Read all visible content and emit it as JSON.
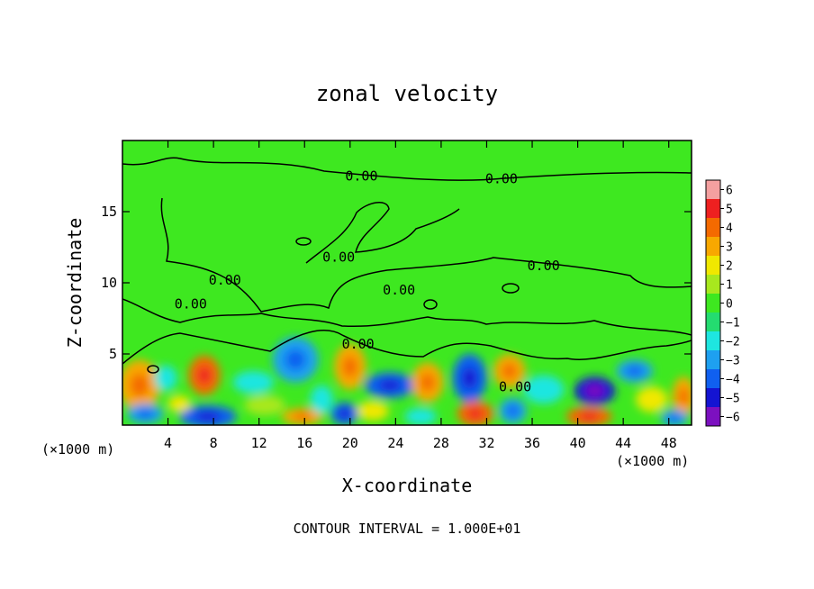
{
  "chart_data": {
    "type": "heatmap",
    "title": "zonal velocity",
    "xlabel": "X-coordinate",
    "ylabel": "Z-coordinate",
    "x_unit_left": "(×1000 m)",
    "x_unit_right": "(×1000 m)",
    "xlim": [
      0,
      50
    ],
    "ylim": [
      0,
      20
    ],
    "x_ticks": [
      4,
      8,
      12,
      16,
      20,
      24,
      28,
      32,
      36,
      40,
      44,
      48
    ],
    "y_ticks": [
      5,
      10,
      15
    ],
    "footer": "CONTOUR INTERVAL = 1.000E+01",
    "colorbar": {
      "min": -6,
      "max": 6,
      "tick_labels": [
        "6",
        "5",
        "4",
        "3",
        "2",
        "1",
        "0",
        "−1",
        "−2",
        "−3",
        "−4",
        "−5",
        "−6"
      ],
      "levels": [
        {
          "value": 6,
          "color": "#f4a0a0"
        },
        {
          "value": 5,
          "color": "#ee2020"
        },
        {
          "value": 4,
          "color": "#f46a00"
        },
        {
          "value": 3,
          "color": "#f8a800"
        },
        {
          "value": 2,
          "color": "#f0e800"
        },
        {
          "value": 1,
          "color": "#a8e81e"
        },
        {
          "value": 0,
          "color": "#3ee820"
        },
        {
          "value": -1,
          "color": "#24dc70"
        },
        {
          "value": -2,
          "color": "#1ee6e0"
        },
        {
          "value": -3,
          "color": "#1ea0f0"
        },
        {
          "value": -4,
          "color": "#1060f0"
        },
        {
          "value": -5,
          "color": "#1414d2"
        },
        {
          "value": -6,
          "color": "#7c10c0"
        }
      ]
    },
    "contour_labels": [
      {
        "text": "0.00",
        "x": 21.0,
        "z": 17.5
      },
      {
        "text": "0.00",
        "x": 33.3,
        "z": 17.3
      },
      {
        "text": "0.00",
        "x": 19.0,
        "z": 11.8
      },
      {
        "text": "0.00",
        "x": 37.0,
        "z": 11.2
      },
      {
        "text": "0.00",
        "x": 9.0,
        "z": 10.2
      },
      {
        "text": "0.00",
        "x": 6.0,
        "z": 8.5
      },
      {
        "text": "0.00",
        "x": 24.3,
        "z": 9.5
      },
      {
        "text": "0.00",
        "x": 20.7,
        "z": 5.7
      },
      {
        "text": "0.00",
        "x": 34.5,
        "z": 2.7
      }
    ],
    "field_blobs": [
      {
        "x": 1.5,
        "z": 2.8,
        "rx": 1.8,
        "rz": 1.8,
        "v": 3
      },
      {
        "x": 3.8,
        "z": 3.3,
        "rx": 1.0,
        "rz": 0.9,
        "v": -2
      },
      {
        "x": 7.2,
        "z": 3.5,
        "rx": 1.4,
        "rz": 1.4,
        "v": 4
      },
      {
        "x": 7.5,
        "z": 0.6,
        "rx": 2.5,
        "rz": 0.8,
        "v": -4
      },
      {
        "x": 2.0,
        "z": 0.8,
        "rx": 1.6,
        "rz": 0.7,
        "v": -3
      },
      {
        "x": 5.0,
        "z": 1.5,
        "rx": 1.0,
        "rz": 0.6,
        "v": 2
      },
      {
        "x": 11.5,
        "z": 3.0,
        "rx": 1.8,
        "rz": 0.8,
        "v": -2
      },
      {
        "x": 12.5,
        "z": 1.4,
        "rx": 1.8,
        "rz": 0.7,
        "v": 1
      },
      {
        "x": 15.2,
        "z": 4.6,
        "rx": 2.0,
        "rz": 1.6,
        "v": -3
      },
      {
        "x": 15.8,
        "z": 0.6,
        "rx": 1.8,
        "rz": 0.6,
        "v": 3
      },
      {
        "x": 17.5,
        "z": 1.8,
        "rx": 1.0,
        "rz": 1.0,
        "v": -2
      },
      {
        "x": 20.0,
        "z": 4.1,
        "rx": 1.4,
        "rz": 1.6,
        "v": 3
      },
      {
        "x": 19.5,
        "z": 0.8,
        "rx": 1.2,
        "rz": 0.8,
        "v": -4
      },
      {
        "x": 23.5,
        "z": 2.8,
        "rx": 2.2,
        "rz": 0.9,
        "v": -4
      },
      {
        "x": 22.0,
        "z": 1.0,
        "rx": 1.4,
        "rz": 0.7,
        "v": 2
      },
      {
        "x": 26.8,
        "z": 3.0,
        "rx": 1.4,
        "rz": 1.4,
        "v": 3
      },
      {
        "x": 26.2,
        "z": 0.6,
        "rx": 1.4,
        "rz": 0.6,
        "v": -2
      },
      {
        "x": 30.5,
        "z": 3.3,
        "rx": 1.5,
        "rz": 1.7,
        "v": -4
      },
      {
        "x": 31.0,
        "z": 0.8,
        "rx": 1.6,
        "rz": 0.9,
        "v": 4
      },
      {
        "x": 34.0,
        "z": 3.8,
        "rx": 1.4,
        "rz": 1.2,
        "v": 3
      },
      {
        "x": 34.3,
        "z": 1.0,
        "rx": 1.2,
        "rz": 0.9,
        "v": -3
      },
      {
        "x": 37.0,
        "z": 2.5,
        "rx": 1.8,
        "rz": 1.0,
        "v": -2
      },
      {
        "x": 41.5,
        "z": 2.4,
        "rx": 1.8,
        "rz": 1.0,
        "v": -5
      },
      {
        "x": 41.0,
        "z": 0.6,
        "rx": 2.0,
        "rz": 0.7,
        "v": 4
      },
      {
        "x": 45.0,
        "z": 3.8,
        "rx": 1.6,
        "rz": 0.8,
        "v": -3
      },
      {
        "x": 46.5,
        "z": 1.8,
        "rx": 1.4,
        "rz": 0.9,
        "v": 2
      },
      {
        "x": 49.3,
        "z": 2.0,
        "rx": 1.0,
        "rz": 1.4,
        "v": 3
      },
      {
        "x": 48.5,
        "z": 0.5,
        "rx": 1.2,
        "rz": 0.6,
        "v": -3
      }
    ]
  }
}
